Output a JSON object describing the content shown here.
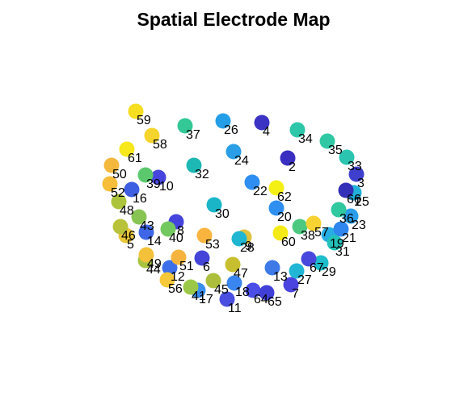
{
  "chart_data": {
    "type": "scatter",
    "title": "Spatial Electrode Map",
    "xlabel": "",
    "ylabel": "",
    "axes_visible": false,
    "grid": false,
    "legend": "none",
    "xlim": [
      0,
      558
    ],
    "ylim": [
      496,
      0
    ],
    "points": [
      {
        "label": "1",
        "x": 437,
        "y": 257,
        "color": "#3b3fc8"
      },
      {
        "label": "2",
        "x": 356,
        "y": 300,
        "color": "#3a2fc0"
      },
      {
        "label": "3",
        "x": 441,
        "y": 280,
        "color": "#3f3fce"
      },
      {
        "label": "4",
        "x": 324,
        "y": 344,
        "color": "#3b33c4"
      },
      {
        "label": "5",
        "x": 156,
        "y": 204,
        "color": "#e8c53a"
      },
      {
        "label": "6",
        "x": 250,
        "y": 176,
        "color": "#4444d8"
      },
      {
        "label": "7",
        "x": 360,
        "y": 143,
        "color": "#4b44de"
      },
      {
        "label": "8",
        "x": 218,
        "y": 221,
        "color": "#4444dc"
      },
      {
        "label": "9",
        "x": 302,
        "y": 202,
        "color": "#e0c23e"
      },
      {
        "label": "10",
        "x": 196,
        "y": 276,
        "color": "#4646de"
      },
      {
        "label": "11",
        "x": 281,
        "y": 125,
        "color": "#4a4ee0"
      },
      {
        "label": "12",
        "x": 210,
        "y": 164,
        "color": "#3e6fea"
      },
      {
        "label": "13",
        "x": 337,
        "y": 164,
        "color": "#3d7ae8"
      },
      {
        "label": "14",
        "x": 181,
        "y": 208,
        "color": "#3e66e6"
      },
      {
        "label": "16",
        "x": 163,
        "y": 261,
        "color": "#3e5fe2"
      },
      {
        "label": "17",
        "x": 245,
        "y": 136,
        "color": "#3a8ef0"
      },
      {
        "label": "18",
        "x": 290,
        "y": 145,
        "color": "#3a86f0"
      },
      {
        "label": "19",
        "x": 407,
        "y": 205,
        "color": "#27aee4"
      },
      {
        "label": "20",
        "x": 342,
        "y": 238,
        "color": "#2f8ff0"
      },
      {
        "label": "21",
        "x": 422,
        "y": 212,
        "color": "#2f86ee"
      },
      {
        "label": "22",
        "x": 312,
        "y": 270,
        "color": "#2f8ef2"
      },
      {
        "label": "23",
        "x": 434,
        "y": 228,
        "color": "#2a9ee8"
      },
      {
        "label": "24",
        "x": 289,
        "y": 308,
        "color": "#2a9ee6"
      },
      {
        "label": "25",
        "x": 438,
        "y": 257,
        "color": "#22b1d8"
      },
      {
        "label": "26",
        "x": 276,
        "y": 346,
        "color": "#249ee6"
      },
      {
        "label": "27",
        "x": 367,
        "y": 160,
        "color": "#22b6d6"
      },
      {
        "label": "28",
        "x": 296,
        "y": 200,
        "color": "#1eb6d0"
      },
      {
        "label": "29",
        "x": 397,
        "y": 170,
        "color": "#1ebdcc"
      },
      {
        "label": "30",
        "x": 265,
        "y": 242,
        "color": "#1ab6c8"
      },
      {
        "label": "31",
        "x": 414,
        "y": 195,
        "color": "#22c2b8"
      },
      {
        "label": "32",
        "x": 240,
        "y": 291,
        "color": "#1eb8b4"
      },
      {
        "label": "33",
        "x": 429,
        "y": 301,
        "color": "#2ac4b0"
      },
      {
        "label": "34",
        "x": 368,
        "y": 335,
        "color": "#2ec6a8"
      },
      {
        "label": "35",
        "x": 405,
        "y": 321,
        "color": "#30c8a4"
      },
      {
        "label": "36",
        "x": 419,
        "y": 236,
        "color": "#30c89e"
      },
      {
        "label": "37",
        "x": 229,
        "y": 340,
        "color": "#34c896"
      },
      {
        "label": "38",
        "x": 371,
        "y": 215,
        "color": "#4cc880"
      },
      {
        "label": "39",
        "x": 180,
        "y": 279,
        "color": "#5cc86e"
      },
      {
        "label": "40",
        "x": 208,
        "y": 212,
        "color": "#74c860"
      },
      {
        "label": "41",
        "x": 236,
        "y": 140,
        "color": "#9cc84a"
      },
      {
        "label": "43",
        "x": 172,
        "y": 227,
        "color": "#88c454"
      },
      {
        "label": "44",
        "x": 180,
        "y": 173,
        "color": "#a8c440"
      },
      {
        "label": "45",
        "x": 264,
        "y": 148,
        "color": "#acbe3c"
      },
      {
        "label": "46",
        "x": 149,
        "y": 215,
        "color": "#b8c23a"
      },
      {
        "label": "47",
        "x": 288,
        "y": 168,
        "color": "#c8bf30"
      },
      {
        "label": "48",
        "x": 147,
        "y": 246,
        "color": "#acc43c"
      },
      {
        "label": "49",
        "x": 181,
        "y": 180,
        "color": "#f4c23a"
      },
      {
        "label": "50",
        "x": 138,
        "y": 291,
        "color": "#f4b83e"
      },
      {
        "label": "51",
        "x": 221,
        "y": 177,
        "color": "#f6b43e"
      },
      {
        "label": "52",
        "x": 136,
        "y": 268,
        "color": "#f6be3a"
      },
      {
        "label": "53",
        "x": 253,
        "y": 204,
        "color": "#f8b43e"
      },
      {
        "label": "56",
        "x": 207,
        "y": 149,
        "color": "#f6c83a"
      },
      {
        "label": "57",
        "x": 388,
        "y": 219,
        "color": "#f6d232"
      },
      {
        "label": "58",
        "x": 188,
        "y": 328,
        "color": "#f6d42e"
      },
      {
        "label": "59",
        "x": 168,
        "y": 358,
        "color": "#f6de20"
      },
      {
        "label": "60",
        "x": 347,
        "y": 207,
        "color": "#f4ea18"
      },
      {
        "label": "61",
        "x": 157,
        "y": 311,
        "color": "#f6e81a"
      },
      {
        "label": "62",
        "x": 342,
        "y": 263,
        "color": "#f4f016"
      },
      {
        "label": "64",
        "x": 313,
        "y": 136,
        "color": "#4a4ee6"
      },
      {
        "label": "65",
        "x": 330,
        "y": 133,
        "color": "#4040d8"
      },
      {
        "label": "66",
        "x": 428,
        "y": 260,
        "color": "#3430b8"
      },
      {
        "label": "67",
        "x": 382,
        "y": 175,
        "color": "#4848dc"
      }
    ]
  }
}
